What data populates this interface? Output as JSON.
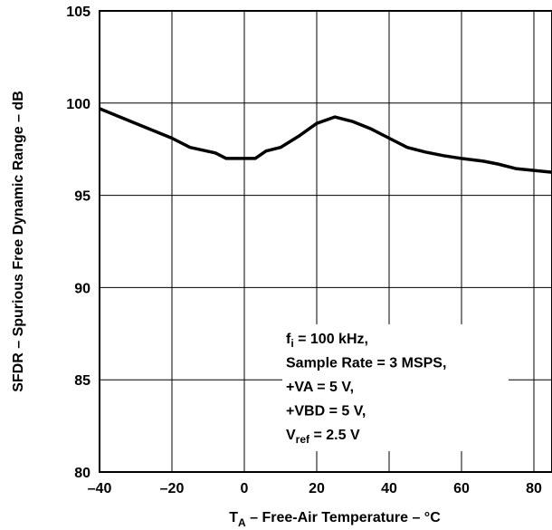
{
  "chart_data": {
    "type": "line",
    "title": "",
    "xlabel": {
      "main": "T",
      "sub": "A",
      "rest": " – Free-Air Temperature – °C"
    },
    "ylabel": "SFDR – Spurious Free Dynamic Range – dB",
    "xlim": [
      -40,
      85
    ],
    "ylim": [
      80,
      105
    ],
    "x_ticks": [
      -40,
      -20,
      0,
      20,
      40,
      60,
      80
    ],
    "y_ticks": [
      80,
      85,
      90,
      95,
      100,
      105
    ],
    "x_tick_labels": [
      "–40",
      "–20",
      "0",
      "20",
      "40",
      "60",
      "80"
    ],
    "y_tick_labels": [
      "80",
      "85",
      "90",
      "95",
      "100",
      "105"
    ],
    "grid": true,
    "series": [
      {
        "x": [
          -40,
          -30,
          -20,
          -15,
          -8,
          -5,
          0,
          3,
          6,
          10,
          15,
          20,
          25,
          30,
          35,
          40,
          45,
          50,
          55,
          60,
          66,
          70,
          75,
          80,
          85
        ],
        "y": [
          99.7,
          98.9,
          98.1,
          97.6,
          97.3,
          97.0,
          97.0,
          97.0,
          97.4,
          97.6,
          98.2,
          98.9,
          99.25,
          99.0,
          98.6,
          98.1,
          97.6,
          97.35,
          97.15,
          97.0,
          96.85,
          96.7,
          96.45,
          96.35,
          96.25
        ]
      }
    ],
    "annotation": [
      {
        "main": "f",
        "sub": "i",
        "rest": " = 100 kHz,"
      },
      {
        "main": "Sample Rate = 3 MSPS,",
        "sub": "",
        "rest": ""
      },
      {
        "main": "+VA = 5 V,",
        "sub": "",
        "rest": ""
      },
      {
        "main": "+VBD = 5 V,",
        "sub": "",
        "rest": ""
      },
      {
        "main": "V",
        "sub": "ref",
        "rest": " = 2.5 V"
      }
    ],
    "colors": {
      "line": "#000000",
      "grid": "#000000",
      "background": "#ffffff"
    }
  }
}
